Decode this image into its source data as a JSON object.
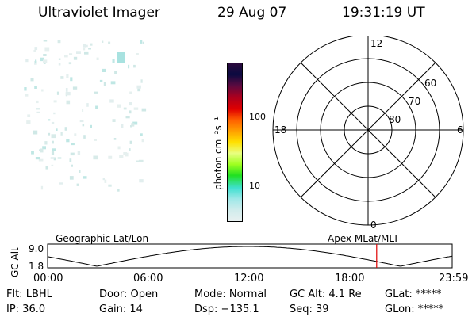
{
  "header": {
    "title": "Ultraviolet Imager",
    "date": "29 Aug 07",
    "time": "19:31:19 UT"
  },
  "colorbar": {
    "label": "photon cm⁻²s⁻¹",
    "tick_100": "100",
    "tick_10": "10",
    "colors": [
      "#2b0a3d",
      "#0a0a40",
      "#5a0a40",
      "#a80020",
      "#e00000",
      "#ff6000",
      "#ffa000",
      "#ffe000",
      "#e8ff80",
      "#a0ff20",
      "#20e020",
      "#40e0d0",
      "#a0e8e8",
      "#d0ecec",
      "#e8f0f0"
    ]
  },
  "polar": {
    "mlt_12": "12",
    "mlt_18": "18",
    "mlt_6": "6",
    "mlt_0": "0",
    "lat_60": "60",
    "lat_70": "70",
    "lat_80": "80"
  },
  "timeline": {
    "left_label": "Geographic Lat/Lon",
    "right_label": "Apex MLat/MLT",
    "y_top": "9.0",
    "y_bottom": "1.8",
    "y_label": "GC Alt",
    "ticks": [
      "00:00",
      "06:00",
      "12:00",
      "18:00",
      "23:59"
    ],
    "current_time_fraction": 0.8133,
    "marker_color": "#e00000"
  },
  "info": {
    "flt": "Flt: LBHL",
    "door": "Door: Open",
    "mode": "Mode: Normal",
    "gc_alt": "GC Alt: 4.1 Re",
    "glat": "GLat: *****",
    "ip": "IP: 36.0",
    "gain": "Gain: 14",
    "dsp": "Dsp: −135.1",
    "seq": "Seq: 39",
    "glon": "GLon: *****"
  }
}
